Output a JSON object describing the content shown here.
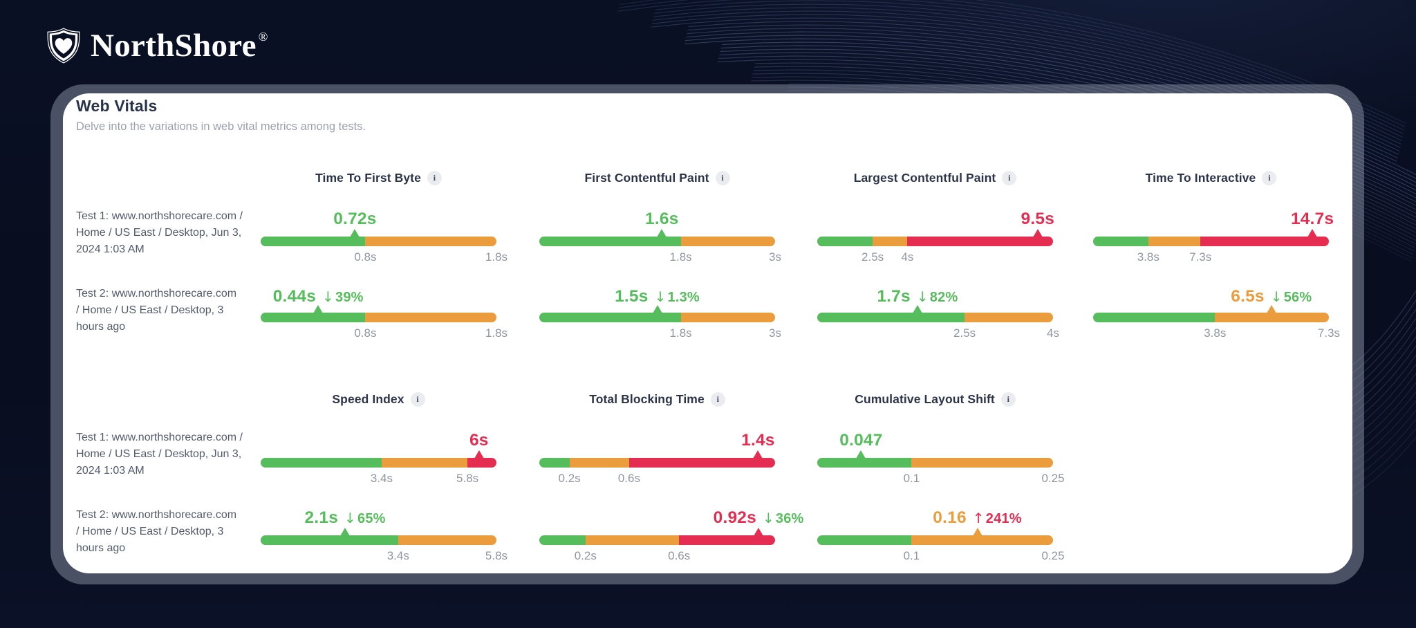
{
  "header": {
    "brand": "NorthShore",
    "trademark": "®",
    "logo_icon": "shield-heart"
  },
  "card": {
    "title": "Web Vitals",
    "subtitle": "Delve into the variations in web vital metrics among tests."
  },
  "colors": {
    "green": "#55bd5b",
    "orange": "#eb9c3c",
    "red": "#e52d52",
    "frame": "#4a5164",
    "background": "#0a1023",
    "tick": "#8f96a2"
  },
  "tests": [
    {
      "label_lines": [
        "Test 1: www.northshorecare.com /",
        "Home / US East / Desktop, Jun 3,",
        "2024 1:03 AM"
      ]
    },
    {
      "label_lines": [
        "Test 2: www.northshorecare.com",
        "/ Home / US East / Desktop, 3",
        "hours ago"
      ]
    }
  ],
  "info_icon_glyph": "i",
  "chart_data": {
    "type": "bar",
    "note": "threshold gauge bars; fractions are positions 0..1 along each bar",
    "sections": [
      {
        "metrics": [
          {
            "name": "Time To First Byte",
            "tests": [
              {
                "value": "0.72s",
                "value_color": "green",
                "delta": null,
                "delta_color": null,
                "marker": {
                  "at": 0.4,
                  "color": "green"
                },
                "segments": [
                  {
                    "color": "green",
                    "to": 0.444
                  },
                  {
                    "color": "orange",
                    "to": 1.0
                  }
                ],
                "ticks": [
                  {
                    "label": "0.8s",
                    "at": 0.444
                  },
                  {
                    "label": "1.8s",
                    "at": 1.0
                  }
                ]
              },
              {
                "value": "0.44s",
                "value_color": "green",
                "delta": "39%",
                "delta_dir": "down",
                "delta_color": "green",
                "marker": {
                  "at": 0.244,
                  "color": "green"
                },
                "segments": [
                  {
                    "color": "green",
                    "to": 0.444
                  },
                  {
                    "color": "orange",
                    "to": 1.0
                  }
                ],
                "ticks": [
                  {
                    "label": "0.8s",
                    "at": 0.444
                  },
                  {
                    "label": "1.8s",
                    "at": 1.0
                  }
                ]
              }
            ]
          },
          {
            "name": "First Contentful Paint",
            "tests": [
              {
                "value": "1.6s",
                "value_color": "green",
                "delta": null,
                "delta_color": null,
                "marker": {
                  "at": 0.52,
                  "color": "green"
                },
                "segments": [
                  {
                    "color": "green",
                    "to": 0.6
                  },
                  {
                    "color": "orange",
                    "to": 1.0
                  }
                ],
                "ticks": [
                  {
                    "label": "1.8s",
                    "at": 0.6
                  },
                  {
                    "label": "3s",
                    "at": 1.0
                  }
                ]
              },
              {
                "value": "1.5s",
                "value_color": "green",
                "delta": "1.3%",
                "delta_dir": "down",
                "delta_color": "green",
                "marker": {
                  "at": 0.5,
                  "color": "green"
                },
                "segments": [
                  {
                    "color": "green",
                    "to": 0.6
                  },
                  {
                    "color": "orange",
                    "to": 1.0
                  }
                ],
                "ticks": [
                  {
                    "label": "1.8s",
                    "at": 0.6
                  },
                  {
                    "label": "3s",
                    "at": 1.0
                  }
                ]
              }
            ]
          },
          {
            "name": "Largest Contentful Paint",
            "tests": [
              {
                "value": "9.5s",
                "value_color": "red",
                "delta": null,
                "delta_color": null,
                "marker": {
                  "at": 0.935,
                  "color": "red"
                },
                "segments": [
                  {
                    "color": "green",
                    "to": 0.235
                  },
                  {
                    "color": "orange",
                    "to": 0.382
                  },
                  {
                    "color": "red",
                    "to": 1.0
                  }
                ],
                "ticks": [
                  {
                    "label": "2.5s",
                    "at": 0.235
                  },
                  {
                    "label": "4s",
                    "at": 0.382
                  }
                ]
              },
              {
                "value": "1.7s",
                "value_color": "green",
                "delta": "82%",
                "delta_dir": "down",
                "delta_color": "green",
                "marker": {
                  "at": 0.425,
                  "color": "green"
                },
                "segments": [
                  {
                    "color": "green",
                    "to": 0.625
                  },
                  {
                    "color": "orange",
                    "to": 1.0
                  }
                ],
                "ticks": [
                  {
                    "label": "2.5s",
                    "at": 0.625
                  },
                  {
                    "label": "4s",
                    "at": 1.0
                  }
                ]
              }
            ]
          },
          {
            "name": "Time To Interactive",
            "tests": [
              {
                "value": "14.7s",
                "value_color": "red",
                "delta": null,
                "delta_color": null,
                "marker": {
                  "at": 0.93,
                  "color": "red"
                },
                "segments": [
                  {
                    "color": "green",
                    "to": 0.234
                  },
                  {
                    "color": "orange",
                    "to": 0.455
                  },
                  {
                    "color": "red",
                    "to": 1.0
                  }
                ],
                "ticks": [
                  {
                    "label": "3.8s",
                    "at": 0.234
                  },
                  {
                    "label": "7.3s",
                    "at": 0.455
                  }
                ]
              },
              {
                "value": "6.5s",
                "value_color": "orange",
                "delta": "56%",
                "delta_dir": "down",
                "delta_color": "green",
                "marker": {
                  "at": 0.756,
                  "color": "orange"
                },
                "segments": [
                  {
                    "color": "green",
                    "to": 0.517
                  },
                  {
                    "color": "orange",
                    "to": 1.0
                  }
                ],
                "ticks": [
                  {
                    "label": "3.8s",
                    "at": 0.517
                  },
                  {
                    "label": "7.3s",
                    "at": 1.0
                  }
                ]
              }
            ]
          }
        ]
      },
      {
        "metrics": [
          {
            "name": "Speed Index",
            "tests": [
              {
                "value": "6s",
                "value_color": "red",
                "delta": null,
                "delta_color": null,
                "marker": {
                  "at": 0.926,
                  "color": "red"
                },
                "segments": [
                  {
                    "color": "green",
                    "to": 0.513
                  },
                  {
                    "color": "orange",
                    "to": 0.877
                  },
                  {
                    "color": "red",
                    "to": 1.0
                  }
                ],
                "ticks": [
                  {
                    "label": "3.4s",
                    "at": 0.513
                  },
                  {
                    "label": "5.8s",
                    "at": 0.877
                  }
                ]
              },
              {
                "value": "2.1s",
                "value_color": "green",
                "delta": "65%",
                "delta_dir": "down",
                "delta_color": "green",
                "marker": {
                  "at": 0.358,
                  "color": "green"
                },
                "segments": [
                  {
                    "color": "green",
                    "to": 0.583
                  },
                  {
                    "color": "orange",
                    "to": 1.0
                  }
                ],
                "ticks": [
                  {
                    "label": "3.4s",
                    "at": 0.583
                  },
                  {
                    "label": "5.8s",
                    "at": 1.0
                  }
                ]
              }
            ]
          },
          {
            "name": "Total Blocking Time",
            "tests": [
              {
                "value": "1.4s",
                "value_color": "red",
                "delta": null,
                "delta_color": null,
                "marker": {
                  "at": 0.928,
                  "color": "red"
                },
                "segments": [
                  {
                    "color": "green",
                    "to": 0.128
                  },
                  {
                    "color": "orange",
                    "to": 0.381
                  },
                  {
                    "color": "red",
                    "to": 1.0
                  }
                ],
                "ticks": [
                  {
                    "label": "0.2s",
                    "at": 0.128
                  },
                  {
                    "label": "0.6s",
                    "at": 0.381
                  }
                ]
              },
              {
                "value": "0.92s",
                "value_color": "red",
                "delta": "36%",
                "delta_dir": "down",
                "delta_color": "green",
                "marker": {
                  "at": 0.93,
                  "color": "red"
                },
                "segments": [
                  {
                    "color": "green",
                    "to": 0.196
                  },
                  {
                    "color": "orange",
                    "to": 0.593
                  },
                  {
                    "color": "red",
                    "to": 1.0
                  }
                ],
                "ticks": [
                  {
                    "label": "0.2s",
                    "at": 0.196
                  },
                  {
                    "label": "0.6s",
                    "at": 0.593
                  }
                ]
              }
            ]
          },
          {
            "name": "Cumulative Layout Shift",
            "tests": [
              {
                "value": "0.047",
                "value_color": "green",
                "delta": null,
                "delta_color": null,
                "marker": {
                  "at": 0.186,
                  "color": "green"
                },
                "segments": [
                  {
                    "color": "green",
                    "to": 0.4
                  },
                  {
                    "color": "orange",
                    "to": 1.0
                  }
                ],
                "ticks": [
                  {
                    "label": "0.1",
                    "at": 0.4
                  },
                  {
                    "label": "0.25",
                    "at": 1.0
                  }
                ]
              },
              {
                "value": "0.16",
                "value_color": "orange",
                "delta": "241%",
                "delta_dir": "up",
                "delta_color": "red",
                "marker": {
                  "at": 0.679,
                  "color": "orange"
                },
                "segments": [
                  {
                    "color": "green",
                    "to": 0.4
                  },
                  {
                    "color": "orange",
                    "to": 1.0
                  }
                ],
                "ticks": [
                  {
                    "label": "0.1",
                    "at": 0.4
                  },
                  {
                    "label": "0.25",
                    "at": 1.0
                  }
                ]
              }
            ]
          }
        ]
      }
    ]
  }
}
